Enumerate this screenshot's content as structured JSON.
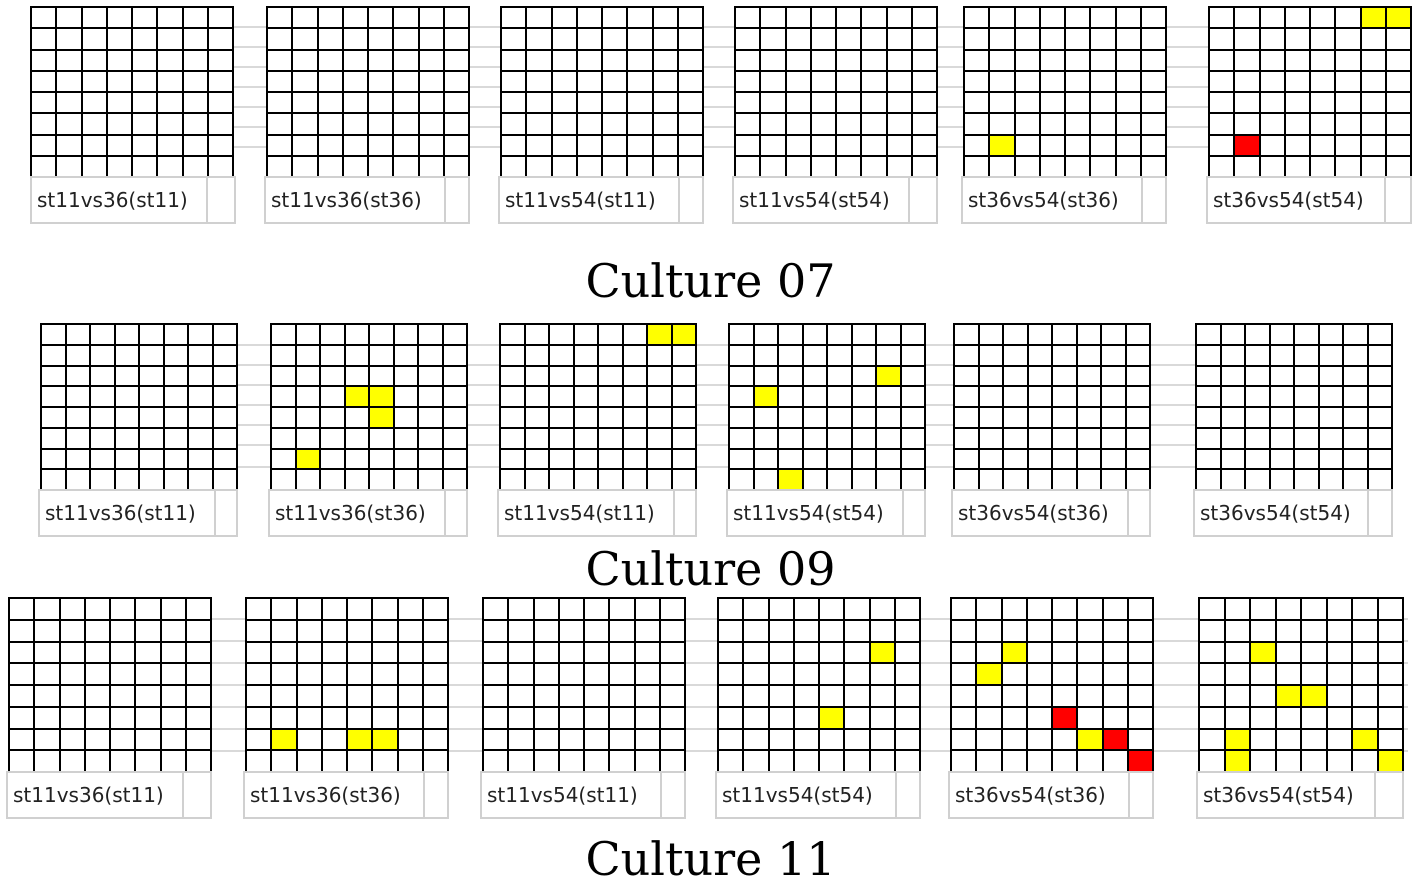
{
  "grid_size": 8,
  "colors": {
    "highlight_yellow": "#ffff00",
    "highlight_red": "#ff0000",
    "grid_line": "#000000",
    "label_border": "#d0d0d0"
  },
  "rows": [
    {
      "caption": "Culture 07",
      "panels": [
        {
          "label": "st11vs36(st11)",
          "cells": []
        },
        {
          "label": "st11vs36(st36)",
          "cells": []
        },
        {
          "label": "st11vs54(st11)",
          "cells": []
        },
        {
          "label": "st11vs54(st54)",
          "cells": []
        },
        {
          "label": "st36vs54(st36)",
          "cells": [
            {
              "row": 6,
              "col": 1,
              "color": "yellow"
            }
          ]
        },
        {
          "label": "st36vs54(st54)",
          "cells": [
            {
              "row": 0,
              "col": 6,
              "color": "yellow"
            },
            {
              "row": 0,
              "col": 7,
              "color": "yellow"
            },
            {
              "row": 6,
              "col": 1,
              "color": "red"
            }
          ]
        }
      ]
    },
    {
      "caption": "Culture 09",
      "panels": [
        {
          "label": "st11vs36(st11)",
          "cells": []
        },
        {
          "label": "st11vs36(st36)",
          "cells": [
            {
              "row": 3,
              "col": 3,
              "color": "yellow"
            },
            {
              "row": 3,
              "col": 4,
              "color": "yellow"
            },
            {
              "row": 4,
              "col": 4,
              "color": "yellow"
            },
            {
              "row": 6,
              "col": 1,
              "color": "yellow"
            }
          ]
        },
        {
          "label": "st11vs54(st11)",
          "cells": [
            {
              "row": 0,
              "col": 6,
              "color": "yellow"
            },
            {
              "row": 0,
              "col": 7,
              "color": "yellow"
            }
          ]
        },
        {
          "label": "st11vs54(st54)",
          "cells": [
            {
              "row": 2,
              "col": 6,
              "color": "yellow"
            },
            {
              "row": 3,
              "col": 1,
              "color": "yellow"
            },
            {
              "row": 7,
              "col": 2,
              "color": "yellow"
            }
          ]
        },
        {
          "label": "st36vs54(st36)",
          "cells": []
        },
        {
          "label": "st36vs54(st54)",
          "cells": []
        }
      ]
    },
    {
      "caption": "Culture 11",
      "panels": [
        {
          "label": "st11vs36(st11)",
          "cells": []
        },
        {
          "label": "st11vs36(st36)",
          "cells": [
            {
              "row": 6,
              "col": 1,
              "color": "yellow"
            },
            {
              "row": 6,
              "col": 4,
              "color": "yellow"
            },
            {
              "row": 6,
              "col": 5,
              "color": "yellow"
            }
          ]
        },
        {
          "label": "st11vs54(st11)",
          "cells": []
        },
        {
          "label": "st11vs54(st54)",
          "cells": [
            {
              "row": 2,
              "col": 6,
              "color": "yellow"
            },
            {
              "row": 5,
              "col": 4,
              "color": "yellow"
            }
          ]
        },
        {
          "label": "st36vs54(st36)",
          "cells": [
            {
              "row": 2,
              "col": 2,
              "color": "yellow"
            },
            {
              "row": 3,
              "col": 1,
              "color": "yellow"
            },
            {
              "row": 5,
              "col": 4,
              "color": "red"
            },
            {
              "row": 6,
              "col": 5,
              "color": "yellow"
            },
            {
              "row": 6,
              "col": 6,
              "color": "red"
            },
            {
              "row": 7,
              "col": 7,
              "color": "red"
            }
          ]
        },
        {
          "label": "st36vs54(st54)",
          "cells": [
            {
              "row": 2,
              "col": 2,
              "color": "yellow"
            },
            {
              "row": 4,
              "col": 3,
              "color": "yellow"
            },
            {
              "row": 4,
              "col": 4,
              "color": "yellow"
            },
            {
              "row": 6,
              "col": 1,
              "color": "yellow"
            },
            {
              "row": 6,
              "col": 6,
              "color": "yellow"
            },
            {
              "row": 7,
              "col": 1,
              "color": "yellow"
            },
            {
              "row": 7,
              "col": 7,
              "color": "yellow"
            }
          ]
        }
      ]
    }
  ]
}
